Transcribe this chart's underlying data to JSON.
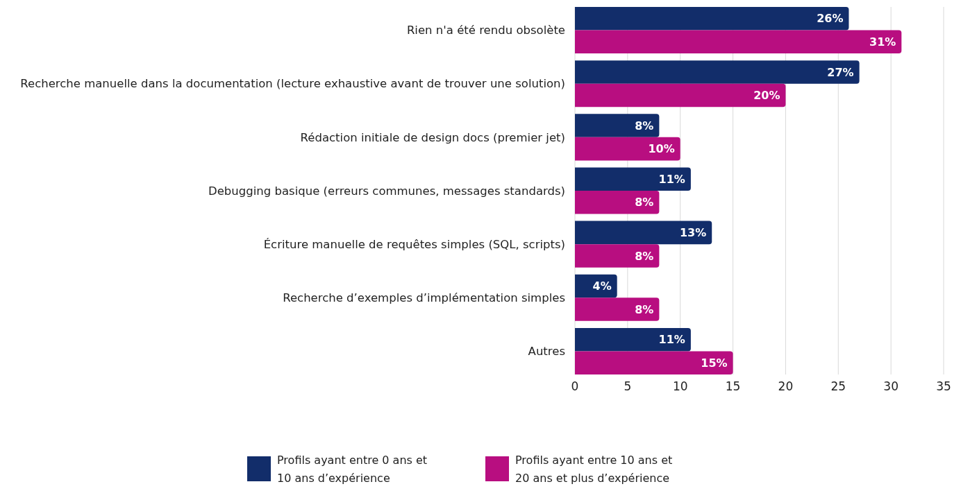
{
  "chart_data": {
    "type": "bar",
    "orientation": "horizontal",
    "categories": [
      "Rien n'a été rendu obsolète",
      "Recherche manuelle dans la documentation (lecture exhaustive avant de trouver une solution)",
      "Rédaction initiale de design docs (premier jet)",
      "Debugging basique (erreurs communes, messages standards)",
      "Écriture manuelle de requêtes simples (SQL, scripts)",
      "Recherche d’exemples d’implémentation simples",
      "Autres"
    ],
    "series": [
      {
        "name": "Profils ayant entre 0 ans et 10 ans d’expérience",
        "color": "#122d6a",
        "values": [
          26,
          27,
          8,
          11,
          13,
          4,
          11
        ],
        "value_labels": [
          "26%",
          "27%",
          "8%",
          "11%",
          "13%",
          "4%",
          "11%"
        ]
      },
      {
        "name": "Profils ayant entre 10 ans et 20 ans et plus d’expérience",
        "color": "#b80e80",
        "values": [
          31,
          20,
          10,
          8,
          8,
          8,
          15
        ],
        "value_labels": [
          "31%",
          "20%",
          "10%",
          "8%",
          "8%",
          "8%",
          "15%"
        ]
      }
    ],
    "xlim": [
      0,
      35
    ],
    "xticks": [
      0,
      5,
      10,
      15,
      20,
      25,
      30,
      35
    ],
    "grid": "x",
    "legend": "bottom"
  }
}
